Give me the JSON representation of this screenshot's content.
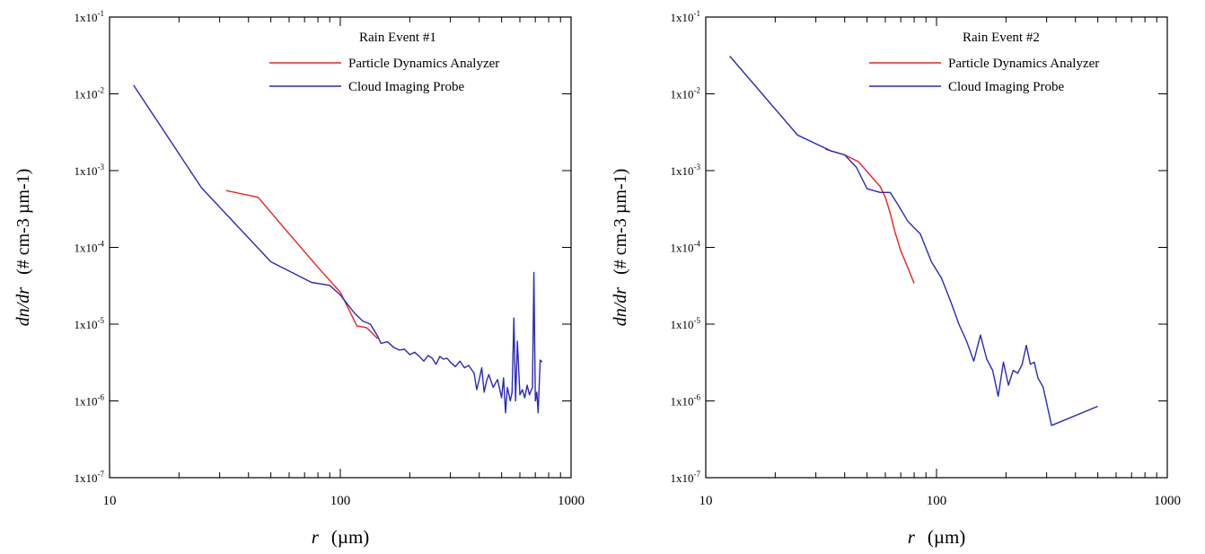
{
  "chart_data": [
    {
      "type": "line",
      "title": "Rain Event #1",
      "xlabel": "r",
      "xlabel_unit": "(µm)",
      "ylabel": "dn/dr",
      "ylabel_unit": "(# cm-3 µm-1)",
      "x_scale": "log",
      "y_scale": "log",
      "xlim": [
        10,
        1000
      ],
      "ylim": [
        1e-07,
        0.1
      ],
      "x_tick_labels": [
        "10",
        "100",
        "1000"
      ],
      "y_tick_labels": [
        {
          "base": "1x10",
          "exp": "-7"
        },
        {
          "base": "1x10",
          "exp": "-6"
        },
        {
          "base": "1x10",
          "exp": "-5"
        },
        {
          "base": "1x10",
          "exp": "-4"
        },
        {
          "base": "1x10",
          "exp": "-3"
        },
        {
          "base": "1x10",
          "exp": "-2"
        },
        {
          "base": "1x10",
          "exp": "-1"
        }
      ],
      "legend_position": "top-right",
      "series": [
        {
          "name": "Particle Dynamics Analyzer",
          "color": "#e8231f",
          "x": [
            32,
            44,
            60,
            80,
            100,
            118,
            130,
            145
          ],
          "y": [
            0.00055,
            0.00045,
            0.00015,
            5.5e-05,
            2.6e-05,
            9.5e-06,
            9e-06,
            6.5e-06
          ]
        },
        {
          "name": "Cloud Imaging Probe",
          "color": "#2a2ab8",
          "x": [
            12.7,
            25,
            50,
            75,
            90,
            100,
            115,
            125,
            135,
            145,
            150,
            160,
            170,
            180,
            190,
            200,
            210,
            220,
            230,
            240,
            250,
            260,
            270,
            280,
            290,
            300,
            315,
            330,
            345,
            360,
            380,
            390,
            400,
            410,
            420,
            430,
            440,
            460,
            480,
            500,
            510,
            520,
            530,
            545,
            555,
            565,
            575,
            585,
            600,
            615,
            630,
            645,
            660,
            680,
            690,
            700,
            710,
            720,
            735,
            750
          ],
          "y": [
            0.013,
            0.0006,
            6.5e-05,
            3.5e-05,
            3.2e-05,
            2.4e-05,
            1.4e-05,
            1.1e-05,
            1e-05,
            7e-06,
            5.6e-06,
            5.9e-06,
            5e-06,
            4.6e-06,
            4.7e-06,
            4e-06,
            4.3e-06,
            3.8e-06,
            3.3e-06,
            3.9e-06,
            3.6e-06,
            3e-06,
            3.8e-06,
            3.5e-06,
            3.6e-06,
            3.2e-06,
            2.8e-06,
            3.3e-06,
            2.7e-06,
            2.9e-06,
            2.3e-06,
            1.4e-06,
            1.9e-06,
            2.7e-06,
            1.3e-06,
            1.8e-06,
            2.2e-06,
            1.5e-06,
            1.9e-06,
            1.1e-06,
            2e-06,
            7e-07,
            1.5e-06,
            1e-06,
            1.3e-06,
            1.2e-05,
            1e-06,
            6e-06,
            1.2e-06,
            1.4e-06,
            1.1e-06,
            1.6e-06,
            1.2e-06,
            1.5e-06,
            4.7e-05,
            1e-06,
            1.3e-06,
            7e-07,
            3.4e-06,
            3.2e-06
          ]
        }
      ]
    },
    {
      "type": "line",
      "title": "Rain Event #2",
      "xlabel": "r",
      "xlabel_unit": "(µm)",
      "ylabel": "dn/dr",
      "ylabel_unit": "(# cm-3 µm-1)",
      "x_scale": "log",
      "y_scale": "log",
      "xlim": [
        10,
        1000
      ],
      "ylim": [
        1e-07,
        0.1
      ],
      "x_tick_labels": [
        "10",
        "100",
        "1000"
      ],
      "y_tick_labels": [
        {
          "base": "1x10",
          "exp": "-7"
        },
        {
          "base": "1x10",
          "exp": "-6"
        },
        {
          "base": "1x10",
          "exp": "-5"
        },
        {
          "base": "1x10",
          "exp": "-4"
        },
        {
          "base": "1x10",
          "exp": "-3"
        },
        {
          "base": "1x10",
          "exp": "-2"
        },
        {
          "base": "1x10",
          "exp": "-1"
        }
      ],
      "legend_position": "top-right",
      "series": [
        {
          "name": "Particle Dynamics Analyzer",
          "color": "#e8231f",
          "x": [
            33,
            40,
            46,
            52,
            57,
            60,
            63,
            66,
            70,
            75,
            80
          ],
          "y": [
            0.0019,
            0.0016,
            0.0013,
            0.00085,
            0.00062,
            0.00045,
            0.00028,
            0.00016,
            9e-05,
            5.5e-05,
            3.4e-05
          ]
        },
        {
          "name": "Cloud Imaging Probe",
          "color": "#2a2ab8",
          "x": [
            12.7,
            25,
            35,
            40,
            45,
            50,
            57,
            63,
            68,
            75,
            80,
            85,
            95,
            105,
            115,
            125,
            135,
            145,
            155,
            165,
            175,
            185,
            195,
            205,
            215,
            225,
            235,
            245,
            255,
            265,
            275,
            290,
            315,
            500
          ],
          "y": [
            0.031,
            0.0029,
            0.0018,
            0.0016,
            0.0011,
            0.00058,
            0.00052,
            0.00052,
            0.00036,
            0.00022,
            0.00018,
            0.00015,
            6.5e-05,
            4e-05,
            2e-05,
            1e-05,
            6e-06,
            3.3e-06,
            7.2e-06,
            3.5e-06,
            2.5e-06,
            1.15e-06,
            3.2e-06,
            1.6e-06,
            2.5e-06,
            2.3e-06,
            3e-06,
            5.3e-06,
            3e-06,
            3.2e-06,
            2e-06,
            1.5e-06,
            4.8e-07,
            8.5e-07
          ]
        }
      ]
    }
  ]
}
